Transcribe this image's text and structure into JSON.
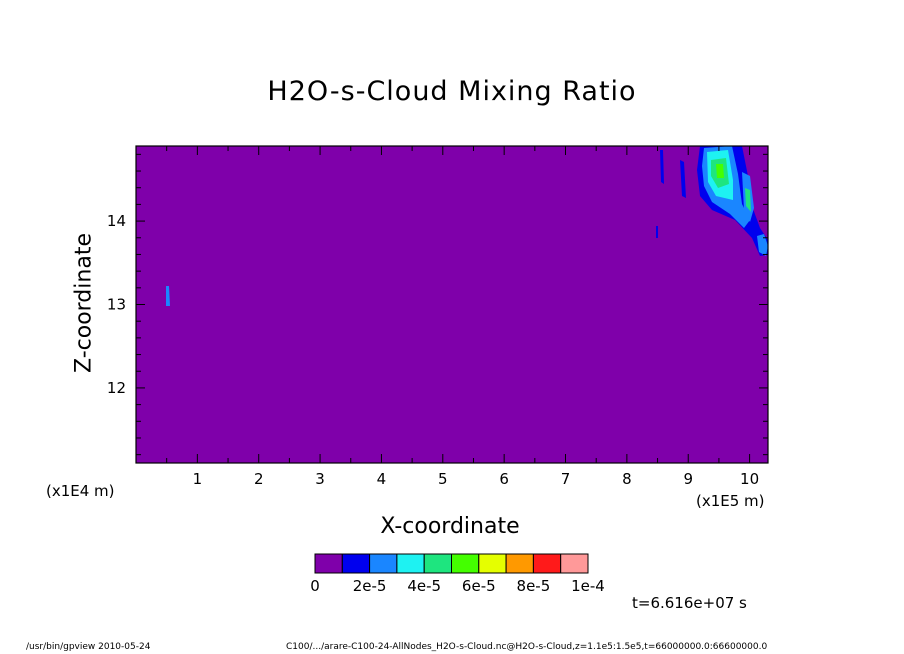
{
  "chart_data": {
    "type": "heatmap",
    "title": "H2O-s-Cloud Mixing Ratio",
    "xlabel": "X-coordinate",
    "ylabel": "Z-coordinate",
    "x_unit": "(x1E5 m)",
    "z_unit": "(x1E4 m)",
    "xlim": [
      0,
      10.3
    ],
    "ylim": [
      11.1,
      14.9
    ],
    "x_ticks": [
      "1",
      "2",
      "3",
      "4",
      "5",
      "6",
      "7",
      "8",
      "9",
      "10"
    ],
    "x_tick_values": [
      1,
      2,
      3,
      4,
      5,
      6,
      7,
      8,
      9,
      10
    ],
    "y_ticks": [
      "12",
      "13",
      "14"
    ],
    "y_tick_values": [
      12,
      13,
      14
    ],
    "background_level": 0,
    "colorbar": {
      "labels": [
        "0",
        "2e-5",
        "4e-5",
        "6e-5",
        "8e-5",
        "1e-4"
      ],
      "colors": [
        "#7f00aa",
        "#0000ee",
        "#1a86ff",
        "#1ef2f2",
        "#1ee57f",
        "#44ff00",
        "#e5ff00",
        "#ff9900",
        "#ff1a1a",
        "#ff9999"
      ]
    },
    "time_label": "t=6.616e+07 s",
    "footer_program": "/usr/bin/gpview  2010-05-24",
    "footer_source": "C100/.../arare-C100-24-AllNodes_H2O-s-Cloud.nc@H2O-s-Cloud,z=1.1e5:1.5e5,t=66000000.0:66600000.0"
  }
}
